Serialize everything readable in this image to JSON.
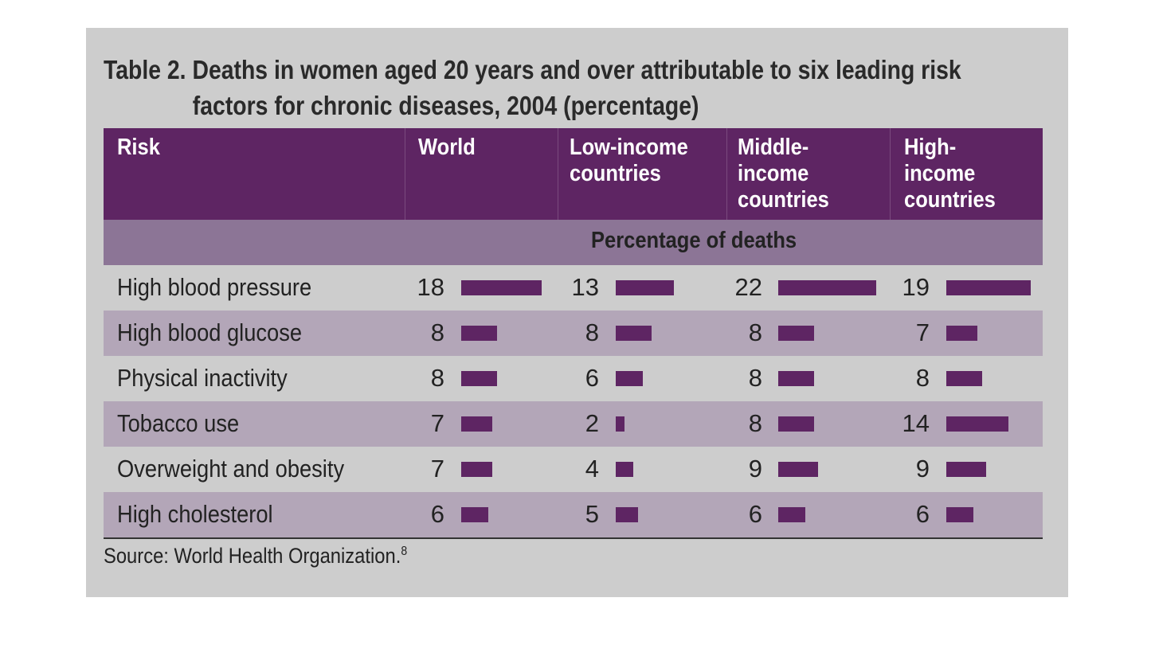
{
  "title": {
    "line1": "Table 2. Deaths in women aged 20 years and over attributable to six leading risk",
    "line2": "factors for chronic diseases, 2004 (percentage)"
  },
  "table": {
    "headers": [
      "Risk",
      "World",
      "Low-income\ncountries",
      "Middle-\nincome\ncountries",
      "High-\nincome\ncountries"
    ],
    "subheader": "Percentage of deaths"
  },
  "source": {
    "text": "Source: World Health Organization.",
    "ref": "8"
  },
  "colors": {
    "header_bg": "#5e2563",
    "bar": "#5e2563",
    "subheader_bg": "#8c7596",
    "row_alt": "#b3a6b8",
    "panel": "#cdcdcd"
  },
  "chart_data": {
    "type": "table",
    "title": "Table 2. Deaths in women aged 20 years and over attributable to six leading risk factors for chronic diseases, 2004 (percentage)",
    "columns": [
      "World",
      "Low-income countries",
      "Middle-income countries",
      "High-income countries"
    ],
    "unit": "Percentage of deaths",
    "rows": [
      {
        "risk": "High blood pressure",
        "values": [
          18,
          13,
          22,
          19
        ]
      },
      {
        "risk": "High blood glucose",
        "values": [
          8,
          8,
          8,
          7
        ]
      },
      {
        "risk": "Physical inactivity",
        "values": [
          8,
          6,
          8,
          8
        ]
      },
      {
        "risk": "Tobacco use",
        "values": [
          7,
          2,
          8,
          14
        ]
      },
      {
        "risk": "Overweight and obesity",
        "values": [
          7,
          4,
          9,
          9
        ]
      },
      {
        "risk": "High cholesterol",
        "values": [
          6,
          5,
          6,
          6
        ]
      }
    ]
  }
}
